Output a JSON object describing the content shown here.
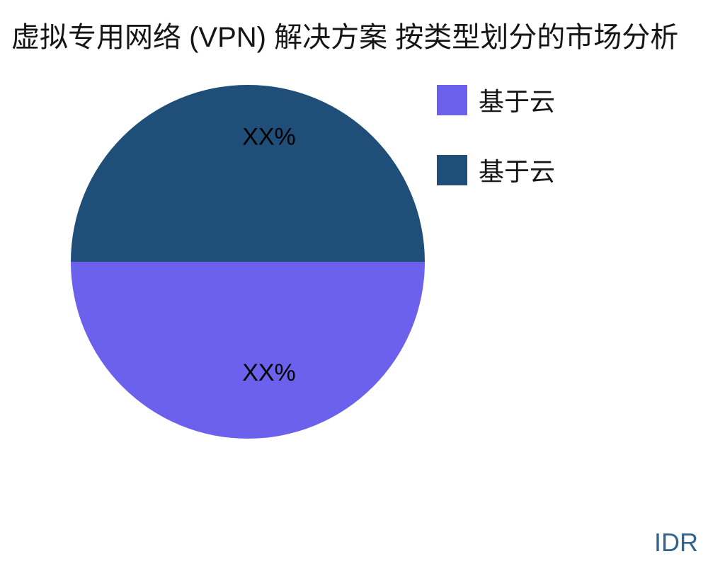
{
  "title": "虚拟专用网络 (VPN) 解决方案 按类型划分的市场分析",
  "watermark": "IDR",
  "colors": {
    "slice_purple": "#6C61EC",
    "slice_navy": "#1F4E79",
    "title_text": "#161616",
    "watermark_text": "#336490",
    "slice_label_text": "#000000",
    "background": "#FFFFFF"
  },
  "chart_data": {
    "type": "pie",
    "title": "虚拟专用网络 (VPN) 解决方案 按类型划分的市场分析",
    "legend_position": "right",
    "start_angle_deg": 0,
    "direction": "clockwise",
    "slices": [
      {
        "name": "基于云",
        "value": 50,
        "display_pct": "XX%",
        "color": "#6C61EC"
      },
      {
        "name": "基于云",
        "value": 50,
        "display_pct": "XX%",
        "color": "#1F4E79"
      }
    ]
  }
}
